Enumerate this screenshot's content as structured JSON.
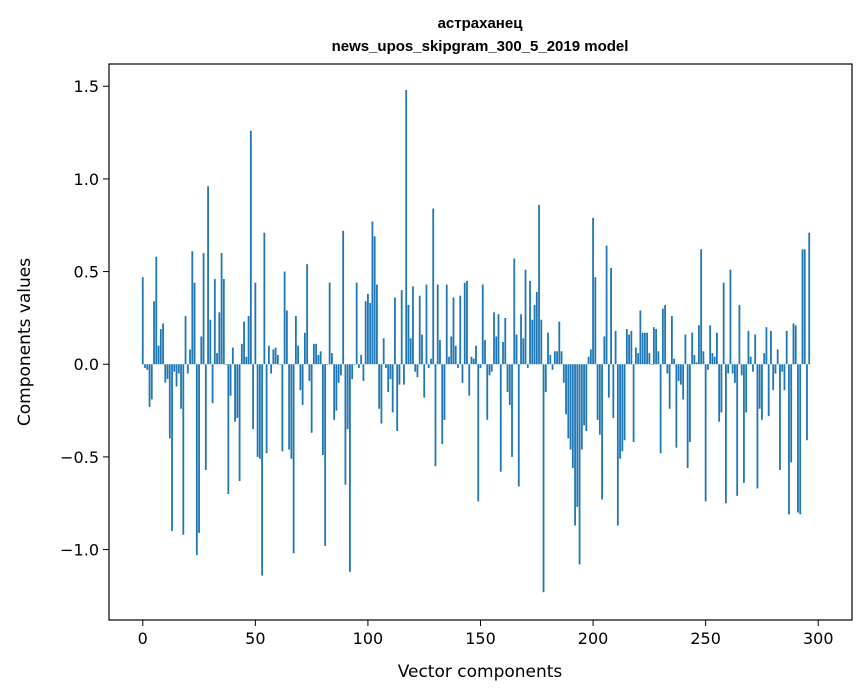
{
  "chart_data": {
    "type": "bar",
    "title": "астраханец",
    "subtitle": "news_upos_skipgram_300_5_2019 model",
    "xlabel": "Vector components",
    "ylabel": "Components values",
    "xlim": [
      -15,
      315
    ],
    "ylim": [
      -1.38,
      1.62
    ],
    "xticks": [
      0,
      50,
      100,
      150,
      200,
      250,
      300
    ],
    "xtick_labels": [
      "0",
      "50",
      "100",
      "150",
      "200",
      "250",
      "300"
    ],
    "yticks": [
      1.5,
      1.0,
      0.5,
      0.0,
      -0.5,
      -1.0
    ],
    "ytick_labels": [
      "1.5",
      "1.0",
      "0.5",
      "0.0",
      "−0.5",
      "−1.0"
    ],
    "grid": false,
    "bar_color": "#1f77b4",
    "values": [
      0.47,
      -0.02,
      -0.03,
      -0.23,
      -0.19,
      0.34,
      0.58,
      0.1,
      0.19,
      0.22,
      -0.1,
      -0.08,
      -0.4,
      -0.9,
      -0.04,
      -0.12,
      -0.05,
      -0.24,
      -0.92,
      0.26,
      -0.05,
      0.08,
      0.61,
      0.44,
      -1.03,
      -0.91,
      0.15,
      0.6,
      -0.57,
      0.96,
      0.24,
      -0.21,
      0.46,
      0.06,
      0.28,
      0.6,
      0.46,
      0.0,
      -0.7,
      -0.17,
      0.09,
      -0.31,
      -0.29,
      -0.63,
      0.11,
      0.23,
      0.04,
      0.26,
      1.26,
      -0.35,
      0.44,
      -0.5,
      -0.51,
      -1.14,
      0.71,
      -0.48,
      0.1,
      -0.05,
      0.08,
      0.09,
      0.05,
      0.0,
      -0.47,
      0.5,
      0.29,
      -0.46,
      -0.51,
      -1.02,
      0.26,
      0.1,
      -0.14,
      -0.22,
      0.17,
      0.54,
      -0.09,
      -0.37,
      0.11,
      0.11,
      0.05,
      0.07,
      -0.49,
      -0.98,
      0.0,
      0.44,
      0.06,
      -0.3,
      -0.25,
      -0.1,
      -0.06,
      0.72,
      -0.65,
      -0.35,
      -1.12,
      -0.08,
      0.0,
      0.44,
      -0.02,
      0.05,
      -0.09,
      0.34,
      0.38,
      0.33,
      0.77,
      0.69,
      0.43,
      -0.24,
      -0.32,
      0.14,
      -0.02,
      -0.15,
      -0.08,
      -0.26,
      0.36,
      -0.36,
      -0.11,
      0.4,
      -0.11,
      1.48,
      0.32,
      0.14,
      0.42,
      -0.04,
      -0.07,
      0.37,
      0.16,
      -0.18,
      0.43,
      -0.02,
      0.03,
      0.84,
      -0.55,
      0.43,
      0.13,
      -0.43,
      -0.3,
      0.43,
      0.04,
      0.15,
      0.36,
      0.1,
      -0.02,
      0.37,
      -0.1,
      0.44,
      0.45,
      -0.17,
      0.04,
      0.03,
      0.1,
      -0.74,
      -0.02,
      0.43,
      0.13,
      -0.3,
      -0.06,
      -0.04,
      0.28,
      0.15,
      0.27,
      -0.58,
      0.12,
      0.25,
      -0.15,
      -0.22,
      -0.5,
      0.57,
      0.16,
      -0.66,
      0.27,
      0.14,
      0.51,
      -0.02,
      0.45,
      0.24,
      0.32,
      0.39,
      0.86,
      0.24,
      -1.23,
      -0.15,
      0.17,
      0.05,
      -0.03,
      0.07,
      0.07,
      0.23,
      0.07,
      -0.1,
      -0.27,
      -0.4,
      -0.46,
      -0.56,
      -0.87,
      -0.77,
      -1.08,
      -0.46,
      -0.33,
      -0.36,
      0.04,
      0.08,
      0.79,
      0.47,
      -0.3,
      -0.38,
      -0.73,
      0.15,
      0.64,
      -0.18,
      0.52,
      -0.29,
      0.18,
      -0.87,
      -0.51,
      -0.47,
      -0.41,
      0.19,
      0.16,
      0.18,
      -0.42,
      0.09,
      0.06,
      0.29,
      0.17,
      0.17,
      0.17,
      0.06,
      0.0,
      0.2,
      0.19,
      0.07,
      -0.48,
      0.3,
      0.32,
      -0.05,
      -0.24,
      0.26,
      0.03,
      -0.45,
      -0.09,
      -0.11,
      -0.19,
      0.16,
      -0.56,
      -0.42,
      0.17,
      0.05,
      0.01,
      0.21,
      0.62,
      0.07,
      -0.74,
      -0.03,
      0.21,
      0.06,
      0.04,
      0.17,
      -0.31,
      -0.26,
      0.44,
      -0.75,
      -0.05,
      0.51,
      -0.05,
      -0.1,
      -0.71,
      0.32,
      -0.06,
      -0.64,
      -0.26,
      0.18,
      0.04,
      -0.04,
      0.16,
      -0.67,
      -0.24,
      -0.3,
      0.06,
      0.2,
      -0.28,
      0.18,
      -0.14,
      -0.05,
      0.08,
      -0.57,
      -0.04,
      -0.14,
      0.18,
      -0.81,
      -0.53,
      0.22,
      0.21,
      -0.8,
      -0.81,
      0.62,
      0.62,
      -0.41,
      0.71
    ]
  }
}
